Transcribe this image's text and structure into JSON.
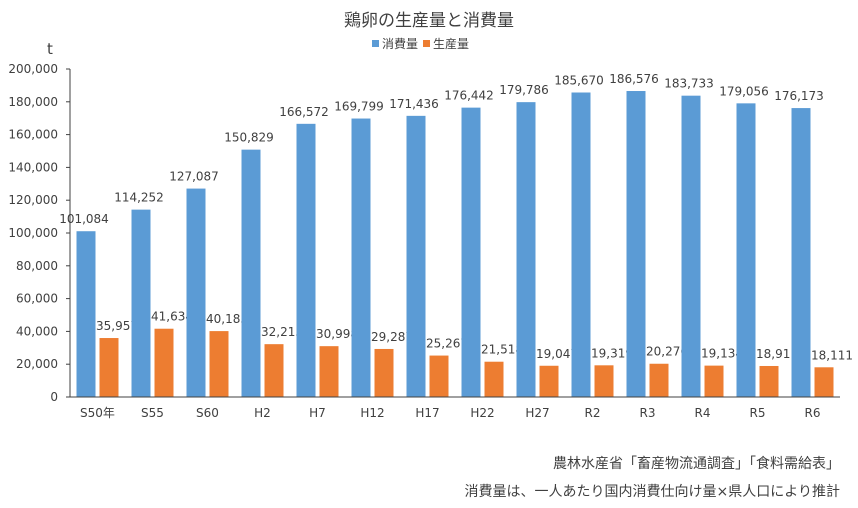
{
  "chart_data": {
    "type": "bar",
    "title": "鶏卵の生産量と消費量",
    "ylabel": "t",
    "xlabel": "",
    "ylim": [
      0,
      200000
    ],
    "yticks": [
      "0",
      "20,000",
      "40,000",
      "60,000",
      "80,000",
      "100,000",
      "120,000",
      "140,000",
      "160,000",
      "180,000",
      "200,000"
    ],
    "ytick_values": [
      0,
      20000,
      40000,
      60000,
      80000,
      100000,
      120000,
      140000,
      160000,
      180000,
      200000
    ],
    "grid": false,
    "legend": "top",
    "categories": [
      "S50年",
      "S55",
      "S60",
      "H2",
      "H7",
      "H12",
      "H17",
      "H22",
      "H27",
      "R2",
      "R3",
      "R4",
      "R5",
      "R6"
    ],
    "series": [
      {
        "name": "消費量",
        "color": "#5B9BD5",
        "values": [
          101084,
          114252,
          127087,
          150829,
          166572,
          169799,
          171436,
          176442,
          179786,
          185670,
          186576,
          183733,
          179056,
          176173
        ],
        "labels": [
          "101,084",
          "114,252",
          "127,087",
          "150,829",
          "166,572",
          "169,799",
          "171,436",
          "176,442",
          "179,786",
          "185,670",
          "186,576",
          "183,733",
          "179,056",
          "176,173"
        ]
      },
      {
        "name": "生産量",
        "color": "#ED7D31",
        "values": [
          35957,
          41634,
          40183,
          32215,
          30998,
          29287,
          25267,
          21518,
          19047,
          19319,
          20276,
          19134,
          18911,
          18111
        ],
        "labels": [
          "35,957",
          "41,634",
          "40,183",
          "32,215",
          "30,998",
          "29,287",
          "25,267",
          "21,518",
          "19,047",
          "19,319",
          "20,276",
          "19,134",
          "18,911",
          "18,111"
        ]
      }
    ]
  },
  "notes": {
    "source": "農林水産省「畜産物流通調査」「食料需給表」",
    "method": "消費量は、一人あたり国内消費仕向け量×県人口により推計"
  }
}
